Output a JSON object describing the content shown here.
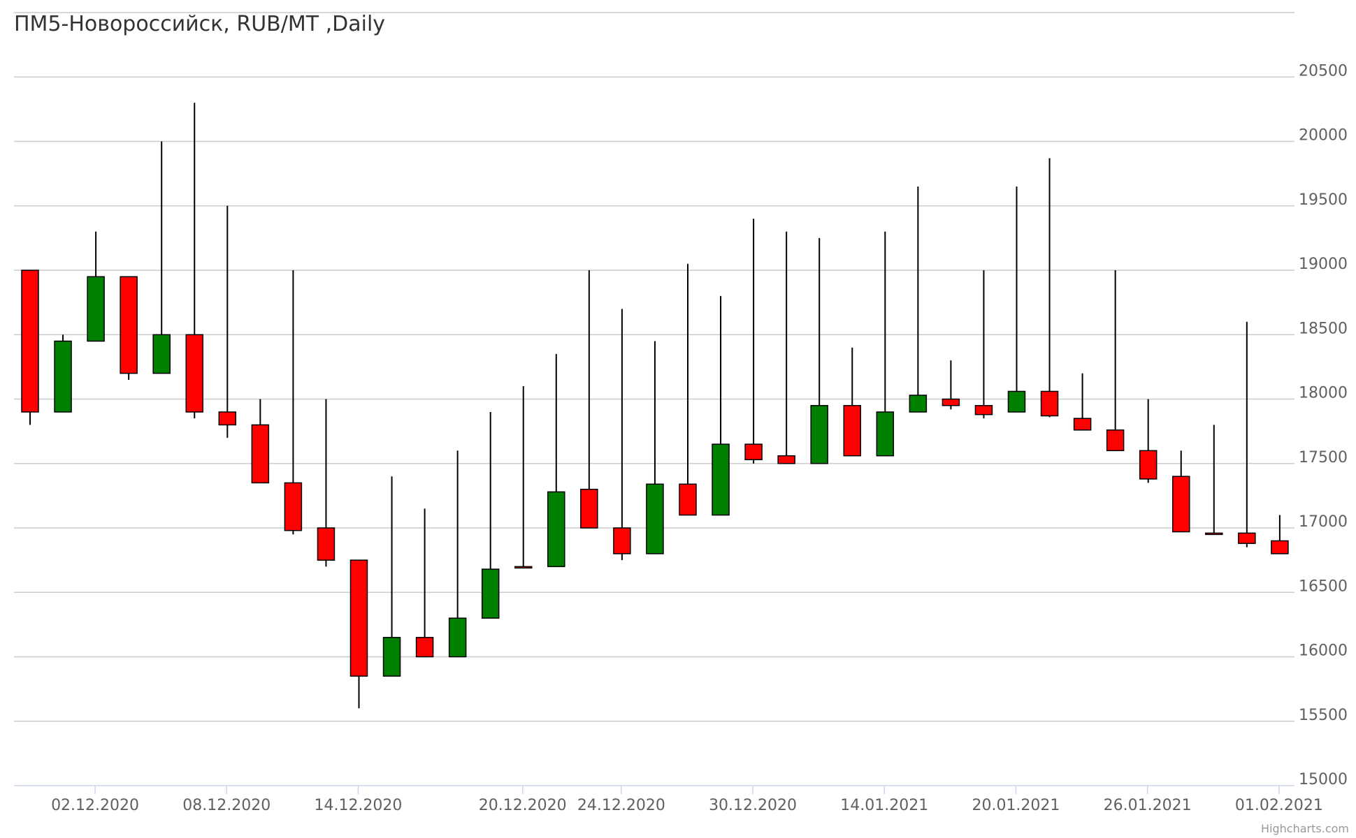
{
  "chart_data": {
    "type": "candlestick",
    "title": "ПМ5-Новороссийск, RUB/MT ,Daily",
    "credit": "Highcharts.com",
    "ylim": [
      15000,
      21000
    ],
    "y_ticks": [
      15000,
      15500,
      16000,
      16500,
      17000,
      17500,
      18000,
      18500,
      19000,
      19500,
      20000,
      20500
    ],
    "grid": true,
    "x_tick_labels": [
      {
        "label": "02.12.2020",
        "index": 1
      },
      {
        "label": "08.12.2020",
        "index": 5
      },
      {
        "label": "14.12.2020",
        "index": 9
      },
      {
        "label": "20.12.2020",
        "index": 14
      },
      {
        "label": "24.12.2020",
        "index": 17
      },
      {
        "label": "30.12.2020",
        "index": 21
      },
      {
        "label": "14.01.2021",
        "index": 25
      },
      {
        "label": "20.01.2021",
        "index": 29
      },
      {
        "label": "26.01.2021",
        "index": 33
      },
      {
        "label": "01.02.2021",
        "index": 37
      }
    ],
    "up_color": "#008000",
    "down_color": "#ff0000",
    "candles": [
      {
        "open": 19000,
        "high": 19000,
        "low": 17800,
        "close": 17900
      },
      {
        "open": 17900,
        "high": 18500,
        "low": 17900,
        "close": 18450
      },
      {
        "open": 18450,
        "high": 19300,
        "low": 18450,
        "close": 18950
      },
      {
        "open": 18950,
        "high": 18950,
        "low": 18150,
        "close": 18200
      },
      {
        "open": 18200,
        "high": 20000,
        "low": 18200,
        "close": 18500
      },
      {
        "open": 18500,
        "high": 20300,
        "low": 17850,
        "close": 17900
      },
      {
        "open": 17900,
        "high": 19500,
        "low": 17700,
        "close": 17800
      },
      {
        "open": 17800,
        "high": 18000,
        "low": 17350,
        "close": 17350
      },
      {
        "open": 17350,
        "high": 19000,
        "low": 16950,
        "close": 16980
      },
      {
        "open": 17000,
        "high": 18000,
        "low": 16700,
        "close": 16750
      },
      {
        "open": 16750,
        "high": 16750,
        "low": 15600,
        "close": 15850
      },
      {
        "open": 15850,
        "high": 17400,
        "low": 15850,
        "close": 16150
      },
      {
        "open": 16150,
        "high": 17150,
        "low": 16000,
        "close": 16000
      },
      {
        "open": 16000,
        "high": 17600,
        "low": 16000,
        "close": 16300
      },
      {
        "open": 16300,
        "high": 17900,
        "low": 16300,
        "close": 16680
      },
      {
        "open": 16700,
        "high": 18100,
        "low": 16700,
        "close": 16700
      },
      {
        "open": 16700,
        "high": 18350,
        "low": 16700,
        "close": 17280
      },
      {
        "open": 17300,
        "high": 19000,
        "low": 17000,
        "close": 17000
      },
      {
        "open": 17000,
        "high": 18700,
        "low": 16750,
        "close": 16800
      },
      {
        "open": 16800,
        "high": 18450,
        "low": 16800,
        "close": 17340
      },
      {
        "open": 17340,
        "high": 19050,
        "low": 17100,
        "close": 17100
      },
      {
        "open": 17100,
        "high": 18800,
        "low": 17100,
        "close": 17650
      },
      {
        "open": 17650,
        "high": 19400,
        "low": 17500,
        "close": 17530
      },
      {
        "open": 17560,
        "high": 19300,
        "low": 17500,
        "close": 17500
      },
      {
        "open": 17500,
        "high": 19250,
        "low": 17500,
        "close": 17950
      },
      {
        "open": 17950,
        "high": 18400,
        "low": 17560,
        "close": 17560
      },
      {
        "open": 17560,
        "high": 19300,
        "low": 17560,
        "close": 17900
      },
      {
        "open": 17900,
        "high": 19650,
        "low": 17900,
        "close": 18030
      },
      {
        "open": 18000,
        "high": 18300,
        "low": 17920,
        "close": 17950
      },
      {
        "open": 17950,
        "high": 19000,
        "low": 17850,
        "close": 17880
      },
      {
        "open": 17900,
        "high": 19650,
        "low": 17900,
        "close": 18060
      },
      {
        "open": 18060,
        "high": 19870,
        "low": 17860,
        "close": 17870
      },
      {
        "open": 17850,
        "high": 18200,
        "low": 17760,
        "close": 17760
      },
      {
        "open": 17760,
        "high": 19000,
        "low": 17600,
        "close": 17600
      },
      {
        "open": 17600,
        "high": 18000,
        "low": 17350,
        "close": 17380
      },
      {
        "open": 17400,
        "high": 17600,
        "low": 16970,
        "close": 16970
      },
      {
        "open": 16960,
        "high": 17800,
        "low": 16960,
        "close": 16960
      },
      {
        "open": 16960,
        "high": 18600,
        "low": 16850,
        "close": 16880
      },
      {
        "open": 16900,
        "high": 17100,
        "low": 16800,
        "close": 16800
      }
    ]
  }
}
